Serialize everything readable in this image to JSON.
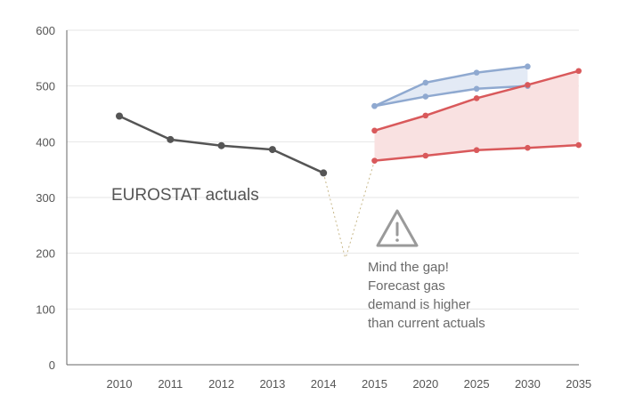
{
  "chart_data": {
    "type": "line",
    "title": "",
    "xlabel": "",
    "ylabel": "",
    "categories": [
      "2010",
      "2011",
      "2012",
      "2013",
      "2014",
      "2015",
      "2020",
      "2025",
      "2030",
      "2035"
    ],
    "yticks": [
      "0",
      "100",
      "200",
      "300",
      "400",
      "500",
      "600"
    ],
    "ylim": [
      0,
      600
    ],
    "grid": "horizontal",
    "series": [
      {
        "name": "EUROSTAT actuals",
        "color": "#555555",
        "values": [
          446,
          404,
          393,
          386,
          344,
          null,
          null,
          null,
          null,
          null
        ]
      },
      {
        "name": "",
        "color": "#8fa9d0",
        "values": [
          null,
          null,
          null,
          null,
          null,
          464,
          506,
          524,
          535,
          null
        ]
      },
      {
        "name": "",
        "color": "#8fa9d0",
        "values": [
          null,
          null,
          null,
          null,
          null,
          464,
          481,
          495,
          500,
          null
        ]
      },
      {
        "name": "",
        "color": "#d9595b",
        "values": [
          null,
          null,
          null,
          null,
          null,
          420,
          447,
          478,
          502,
          527
        ]
      },
      {
        "name": "",
        "color": "#d9595b",
        "values": [
          null,
          null,
          null,
          null,
          null,
          366,
          375,
          385,
          389,
          394
        ]
      }
    ],
    "bands": [
      {
        "upper_series": 1,
        "lower_series": 2,
        "color": "#e3eaf5"
      },
      {
        "upper_series": 3,
        "lower_series": 4,
        "color": "#f9e1e1"
      }
    ],
    "annotations": {
      "actuals_label": "EUROSTAT actuals",
      "warning_icon": "warning-triangle-icon",
      "gap_lines": [
        "Mind the gap!",
        "Forecast gas",
        "demand is higher",
        "than current actuals"
      ],
      "gap_line_color": "#c8b88a"
    }
  }
}
